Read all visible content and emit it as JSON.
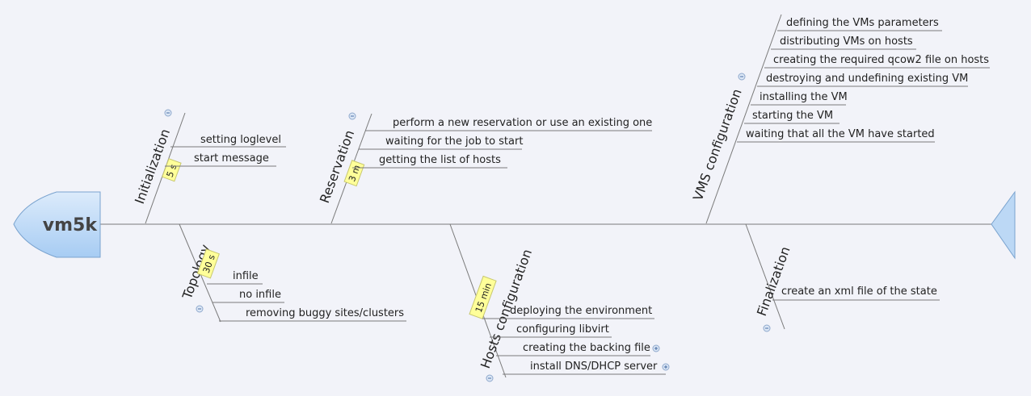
{
  "head": {
    "title": "vm5k"
  },
  "colors": {
    "head_fill": "#bcd8f5",
    "line": "#7a7a7a",
    "tag_fill": "#ffff99",
    "background": "#f2f3f9"
  },
  "icons": {
    "collapse": "minus-circle",
    "expand": "plus-circle"
  },
  "branches": [
    {
      "id": "initialization",
      "label": "Initialization",
      "time": "5 s",
      "items": [
        "setting loglevel",
        "start message"
      ]
    },
    {
      "id": "reservation",
      "label": "Reservation",
      "time": "3 m",
      "items": [
        "perform a new reservation or use an existing one",
        "waiting for the job to start",
        "getting the list of hosts"
      ]
    },
    {
      "id": "vms-configuration",
      "label": "VMS configuration",
      "time": "",
      "items": [
        "defining the VMs parameters",
        "distributing VMs on hosts",
        "creating the required qcow2 file on hosts",
        "destroying and undefining existing VM",
        "installing the VM",
        "starting the VM",
        "waiting that all the VM have started"
      ]
    },
    {
      "id": "topology",
      "label": "Topology",
      "time": "30 s",
      "items": [
        "infile",
        "no infile",
        "removing buggy sites/clusters"
      ]
    },
    {
      "id": "hosts-configuration",
      "label": "Hosts configuration",
      "time": "15 min",
      "items": [
        "deploying the environment",
        "configuring libvirt",
        "creating the backing file",
        "install DNS/DHCP server"
      ],
      "expandable": [
        "creating the backing file",
        "install DNS/DHCP server"
      ]
    },
    {
      "id": "finalization",
      "label": "Finalization",
      "time": "",
      "items": [
        "create an xml file of the state"
      ]
    }
  ]
}
